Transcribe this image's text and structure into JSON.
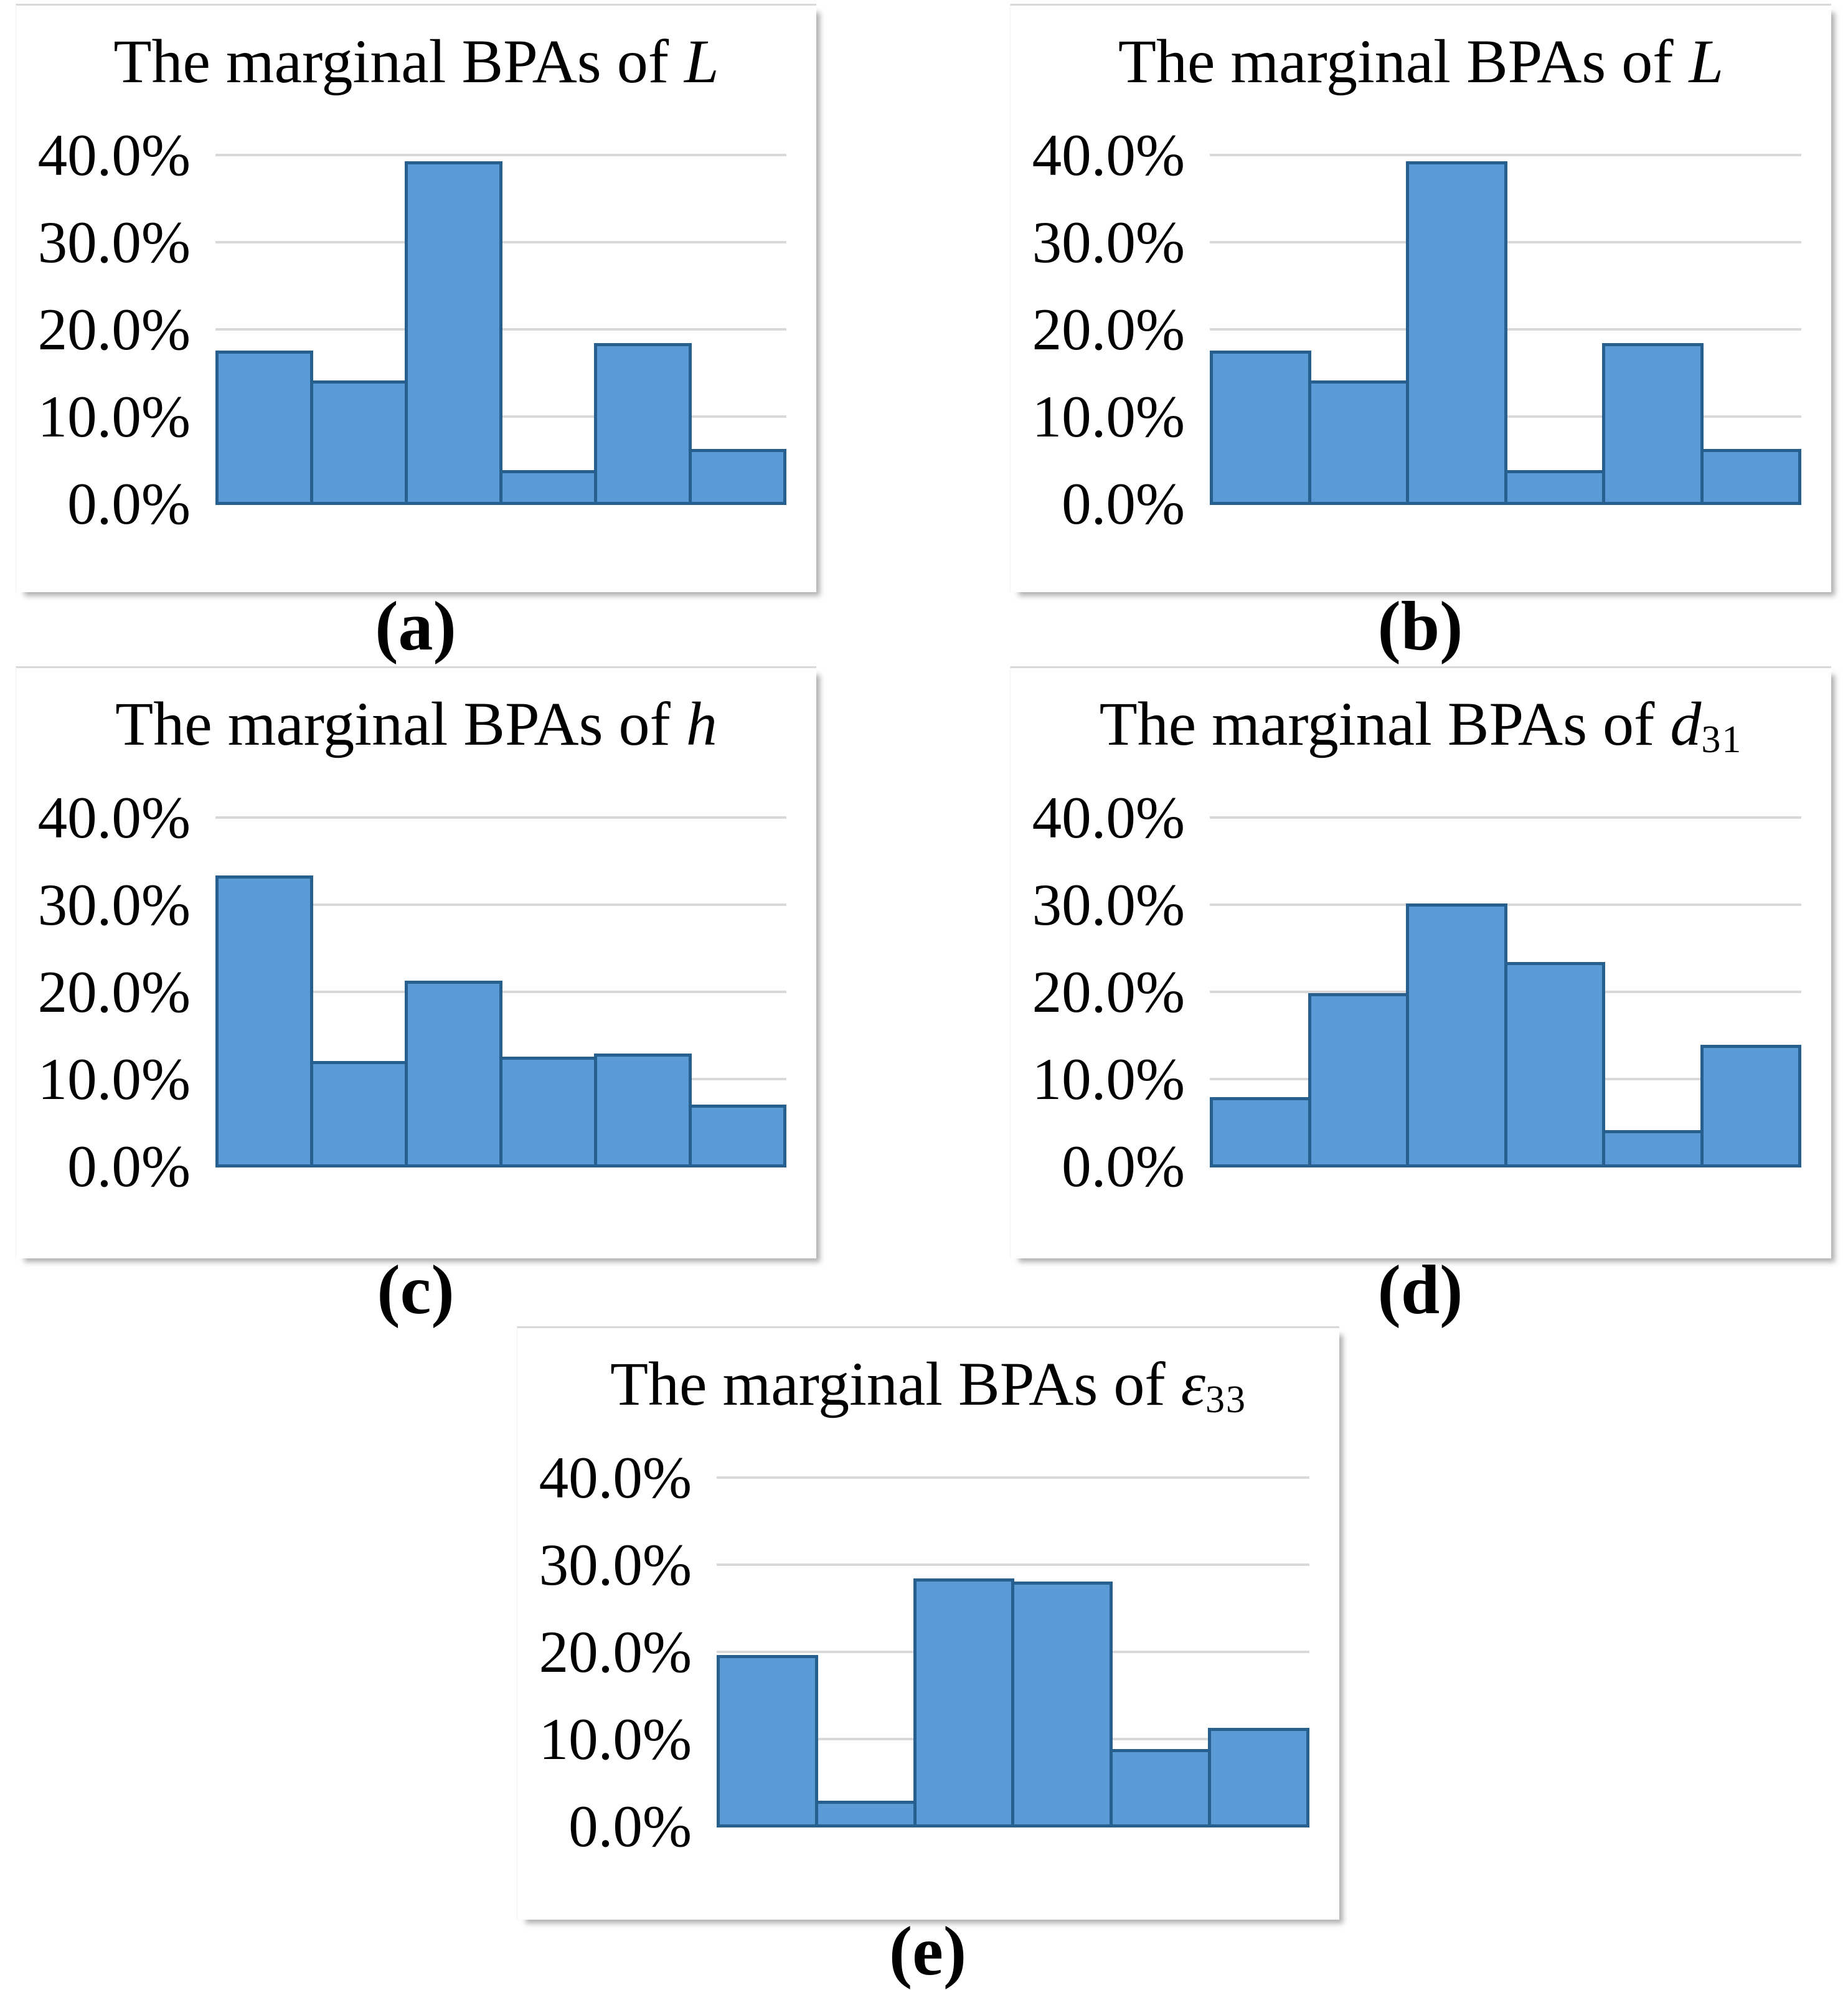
{
  "style": {
    "bar_fill": "#5B9BD5",
    "bar_border": "#27608F",
    "gridline_color": "#D9D9D9",
    "text_color": "#000000",
    "panel_background": "#FFFFFF"
  },
  "chart_data": [
    {
      "id": "a",
      "type": "bar",
      "caption": "(a)",
      "title": {
        "prefix": "The marginal BPAs of ",
        "variable": "L",
        "subscript": ""
      },
      "title_text": "The marginal BPAs of L",
      "y_ticks": [
        "40.0%",
        "30.0%",
        "20.0%",
        "10.0%",
        "0.0%"
      ],
      "ylim": [
        0,
        45
      ],
      "grid": true,
      "legend": false,
      "x_tick_labels": [],
      "values_pct": [
        17.7,
        14.3,
        39.4,
        4.0,
        18.6,
        6.4
      ]
    },
    {
      "id": "b",
      "type": "bar",
      "caption": "(b)",
      "title": {
        "prefix": "The marginal BPAs of ",
        "variable": "L",
        "subscript": ""
      },
      "title_text": "The marginal BPAs of L",
      "y_ticks": [
        "40.0%",
        "30.0%",
        "20.0%",
        "10.0%",
        "0.0%"
      ],
      "ylim": [
        0,
        45
      ],
      "grid": true,
      "legend": false,
      "x_tick_labels": [],
      "values_pct": [
        17.7,
        14.3,
        39.4,
        4.0,
        18.6,
        6.4
      ]
    },
    {
      "id": "c",
      "type": "bar",
      "caption": "(c)",
      "title": {
        "prefix": "The marginal BPAs of ",
        "variable": "h",
        "subscript": ""
      },
      "title_text": "The marginal BPAs of h",
      "y_ticks": [
        "40.0%",
        "30.0%",
        "20.0%",
        "10.0%",
        "0.0%"
      ],
      "ylim": [
        0,
        45
      ],
      "grid": true,
      "legend": false,
      "x_tick_labels": [],
      "values_pct": [
        33.5,
        12.2,
        21.4,
        12.7,
        13.1,
        7.2
      ]
    },
    {
      "id": "d",
      "type": "bar",
      "caption": "(d)",
      "title": {
        "prefix": "The marginal BPAs of ",
        "variable": "d",
        "subscript": "31"
      },
      "title_text": "The marginal BPAs of d31",
      "y_ticks": [
        "40.0%",
        "30.0%",
        "20.0%",
        "10.0%",
        "0.0%"
      ],
      "ylim": [
        0,
        45
      ],
      "grid": true,
      "legend": false,
      "x_tick_labels": [],
      "values_pct": [
        8.1,
        20.0,
        30.3,
        23.6,
        4.3,
        14.1
      ]
    },
    {
      "id": "e",
      "type": "bar",
      "caption": "(e)",
      "title": {
        "prefix": "The marginal BPAs of ",
        "variable": "ε",
        "subscript": "33"
      },
      "title_text": "The marginal BPAs of ε33",
      "y_ticks": [
        "40.0%",
        "30.0%",
        "20.0%",
        "10.0%",
        "0.0%"
      ],
      "ylim": [
        0,
        45
      ],
      "grid": true,
      "legend": false,
      "x_tick_labels": [],
      "values_pct": [
        19.8,
        3.1,
        28.6,
        28.2,
        9.0,
        11.4
      ]
    }
  ]
}
